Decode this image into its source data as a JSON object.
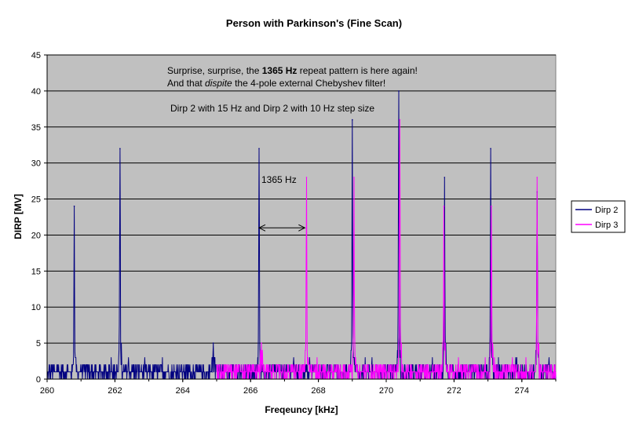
{
  "chart_data": {
    "type": "line",
    "title": "Person with Parkinson's (Fine Scan)",
    "xlabel": "Freqeuncy [kHz]",
    "ylabel": "DIRP [MV]",
    "xlim": [
      260,
      275
    ],
    "ylim": [
      0,
      45
    ],
    "x_ticks": [
      "260",
      "262",
      "264",
      "266",
      "268",
      "270",
      "272",
      "274"
    ],
    "y_ticks": [
      "0",
      "5",
      "10",
      "15",
      "20",
      "25",
      "30",
      "35",
      "40",
      "45"
    ],
    "grid": "horizontal",
    "plot_background": "#c0c0c0",
    "legend_position": "right",
    "series": [
      {
        "name": "Dirp 2",
        "color": "#000080",
        "x_range": [
          260,
          275
        ],
        "noise_max": 2,
        "peaks": [
          {
            "x": 260.8,
            "y": 24
          },
          {
            "x": 262.15,
            "y": 32
          },
          {
            "x": 264.9,
            "y": 5
          },
          {
            "x": 266.25,
            "y": 32
          },
          {
            "x": 269.0,
            "y": 36
          },
          {
            "x": 270.37,
            "y": 40
          },
          {
            "x": 271.72,
            "y": 28
          },
          {
            "x": 273.08,
            "y": 32
          },
          {
            "x": 274.45,
            "y": 26
          }
        ]
      },
      {
        "name": "Dirp 3",
        "color": "#ff00ff",
        "x_range": [
          265,
          275
        ],
        "noise_max": 2,
        "peaks": [
          {
            "x": 266.32,
            "y": 5
          },
          {
            "x": 267.65,
            "y": 28
          },
          {
            "x": 269.05,
            "y": 28
          },
          {
            "x": 270.4,
            "y": 36
          },
          {
            "x": 271.7,
            "y": 24
          },
          {
            "x": 273.1,
            "y": 24
          },
          {
            "x": 274.45,
            "y": 28
          }
        ]
      }
    ],
    "annotations": {
      "line1_pre": "Surprise, surprise, the ",
      "line1_bold": "1365 Hz",
      "line1_post": " repeat pattern is here again!",
      "line2_pre": "And that ",
      "line2_italic": "dispite",
      "line2_post": " the 4-pole external Chebyshev filter!",
      "line3": "Dirp 2 with 15 Hz  and Dirp 2 with 10 Hz step size",
      "arrow_label": "1365 Hz",
      "arrow_from_x": 266.25,
      "arrow_to_x": 267.6,
      "arrow_y": 21
    }
  }
}
